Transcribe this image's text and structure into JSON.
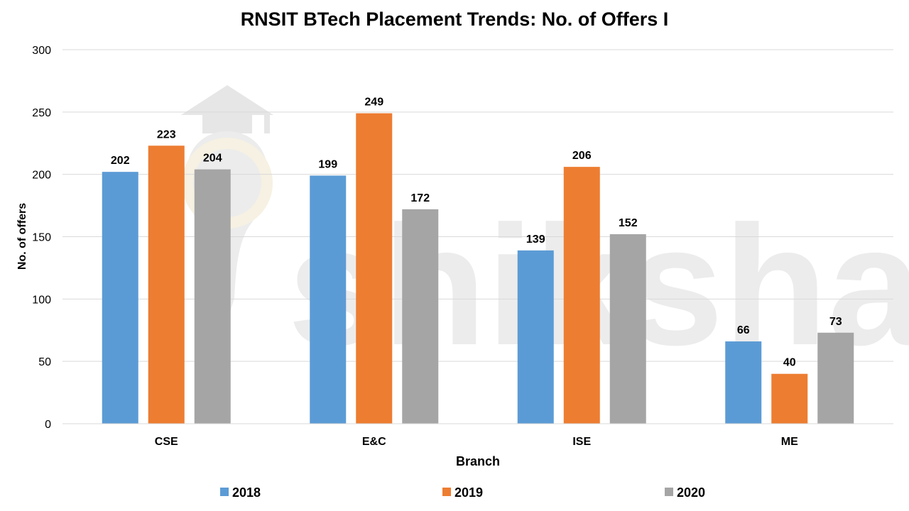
{
  "chart_data": {
    "type": "bar",
    "title": "RNSIT BTech Placement Trends: No. of Offers I",
    "xlabel": "Branch",
    "ylabel": "No. of offers",
    "categories": [
      "CSE",
      "E&C",
      "ISE",
      "ME"
    ],
    "series": [
      {
        "name": "2018",
        "color": "#5B9BD5",
        "values": [
          202,
          199,
          139,
          66
        ]
      },
      {
        "name": "2019",
        "color": "#ED7D31",
        "values": [
          223,
          249,
          206,
          40
        ]
      },
      {
        "name": "2020",
        "color": "#A5A5A5",
        "values": [
          204,
          172,
          152,
          73
        ]
      }
    ],
    "ylim": [
      0,
      300
    ],
    "yticks": [
      0,
      50,
      100,
      150,
      200,
      250,
      300
    ],
    "grid": true,
    "legend_position": "bottom",
    "data_labels": true
  },
  "watermark": {
    "text": "shiksha",
    "icon": "graduation-cap-bulb-icon"
  }
}
